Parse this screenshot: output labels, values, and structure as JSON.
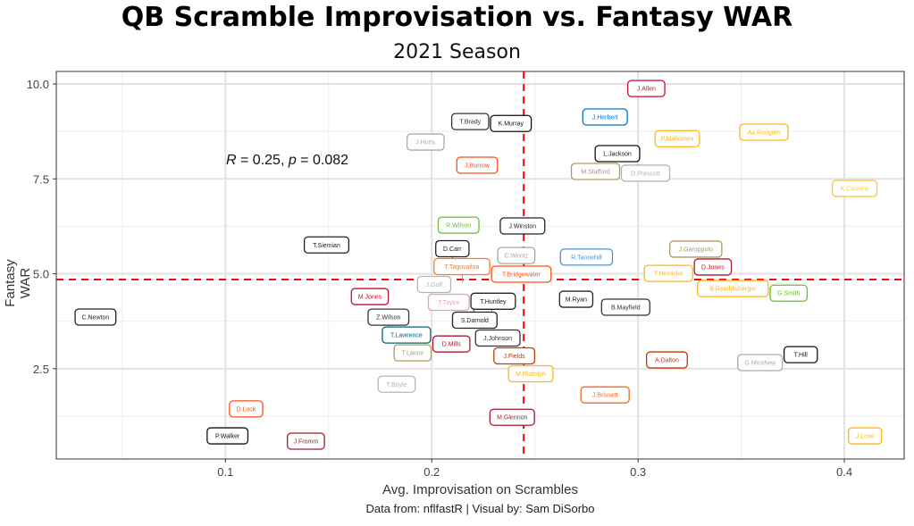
{
  "chart_data": {
    "type": "scatter",
    "title": "QB Scramble Improvisation vs. Fantasy WAR",
    "subtitle": "2021 Season",
    "xlabel": "Avg. Improvisation on Scrambles",
    "ylabel": "Fantasy WAR",
    "caption": "Data from: nflfastR | Visual by: Sam DiSorbo",
    "annotation": {
      "r_label": "R",
      "r_value": "= 0.25, ",
      "p_label": "p",
      "p_value": "= 0.082"
    },
    "xlim": [
      0.018,
      0.429
    ],
    "ylim": [
      0.12,
      10.33
    ],
    "x_ticks": [
      {
        "v": 0.1,
        "label": "0.1"
      },
      {
        "v": 0.2,
        "label": "0.2"
      },
      {
        "v": 0.3,
        "label": "0.3"
      },
      {
        "v": 0.4,
        "label": "0.4"
      }
    ],
    "y_ticks": [
      {
        "v": 2.5,
        "label": "2.5"
      },
      {
        "v": 5,
        "label": "5.0"
      },
      {
        "v": 7.5,
        "label": "7.5"
      },
      {
        "v": 10,
        "label": "10.0"
      }
    ],
    "grid": true,
    "reference_lines": {
      "x_mean": 0.2446,
      "y_mean": 4.85,
      "color": "#ff0000"
    },
    "points": [
      {
        "name": "J.Allen",
        "x": 0.304,
        "y": 9.88,
        "color": "#c60c30"
      },
      {
        "name": "J.Herbert",
        "x": 0.284,
        "y": 9.13,
        "color": "#0073cf"
      },
      {
        "name": "T.Brady",
        "x": 0.22,
        "y": 9.01,
        "color": "#333333"
      },
      {
        "name": "K.Murray",
        "x": 0.237,
        "y": 8.96,
        "color": "#111111"
      },
      {
        "name": "P.Mahomes",
        "x": 0.319,
        "y": 8.56,
        "color": "#ffb612"
      },
      {
        "name": "Aa.Rodgers",
        "x": 0.361,
        "y": 8.73,
        "color": "#ffb612"
      },
      {
        "name": "J.Hurts",
        "x": 0.197,
        "y": 8.47,
        "color": "#a5acaf"
      },
      {
        "name": "J.Burrow",
        "x": 0.222,
        "y": 7.86,
        "color": "#fb4f14"
      },
      {
        "name": "M.Stafford",
        "x": 0.28,
        "y": 7.79,
        "color": "#b3995d"
      },
      {
        "name": "D.Prescott",
        "x": 0.303,
        "y": 7.65,
        "color": "#b0b7bc"
      },
      {
        "name": "L.Jackson",
        "x": 0.29,
        "y": 8.07,
        "color": "#111111"
      },
      {
        "name": "K.Cousins",
        "x": 0.405,
        "y": 7.25,
        "color": "#ffc62f"
      },
      {
        "name": "R.Wilson",
        "x": 0.213,
        "y": 6.28,
        "color": "#69be28"
      },
      {
        "name": "J.Winston",
        "x": 0.244,
        "y": 6.26,
        "color": "#222222"
      },
      {
        "name": "T.Siemian",
        "x": 0.149,
        "y": 5.76,
        "color": "#222222"
      },
      {
        "name": "C.Wentz",
        "x": 0.241,
        "y": 5.48,
        "color": "#a2aaad"
      },
      {
        "name": "D.Carr",
        "x": 0.21,
        "y": 5.32,
        "color": "#222222"
      },
      {
        "name": "R.Tannehill",
        "x": 0.275,
        "y": 5.44,
        "color": "#4b92db"
      },
      {
        "name": "J.Garoppolo",
        "x": 0.328,
        "y": 5.44,
        "color": "#b3995d"
      },
      {
        "name": "D.Jones",
        "x": 0.335,
        "y": 5.39,
        "color": "#a71930"
      },
      {
        "name": "T.Heinicke",
        "x": 0.316,
        "y": 5.01,
        "color": "#ffb612"
      },
      {
        "name": "T.Bridgewater",
        "x": 0.243,
        "y": 4.99,
        "color": "#fb4f14"
      },
      {
        "name": "J.Goff",
        "x": 0.202,
        "y": 4.52,
        "color": "#b0b7bc"
      },
      {
        "name": "T.Taylor",
        "x": 0.209,
        "y": 4.52,
        "color": "#e8a0b0"
      },
      {
        "name": "T.Tagovailoa",
        "x": 0.215,
        "y": 4.78,
        "color": "#fc7a2a"
      },
      {
        "name": "M.Jones",
        "x": 0.17,
        "y": 4.4,
        "color": "#c60c30"
      },
      {
        "name": "B.Roethlisberger",
        "x": 0.346,
        "y": 4.61,
        "color": "#ffb612"
      },
      {
        "name": "G.Smith",
        "x": 0.373,
        "y": 4.49,
        "color": "#69be28"
      },
      {
        "name": "M.Ryan",
        "x": 0.27,
        "y": 4.33,
        "color": "#222222"
      },
      {
        "name": "S.Darnold",
        "x": 0.22,
        "y": 4.19,
        "color": "#222222"
      },
      {
        "name": "T.Huntley",
        "x": 0.229,
        "y": 4.02,
        "color": "#222222"
      },
      {
        "name": "B.Mayfield",
        "x": 0.294,
        "y": 4.12,
        "color": "#333333"
      },
      {
        "name": "C.Newton",
        "x": 0.037,
        "y": 3.86,
        "color": "#222222"
      },
      {
        "name": "Z.Wilson",
        "x": 0.179,
        "y": 3.62,
        "color": "#333333"
      },
      {
        "name": "J.Johnson",
        "x": 0.232,
        "y": 3.51,
        "color": "#333333"
      },
      {
        "name": "T.Lawrence",
        "x": 0.188,
        "y": 3.39,
        "color": "#006778"
      },
      {
        "name": "T.Lance",
        "x": 0.191,
        "y": 3.15,
        "color": "#b3995d"
      },
      {
        "name": "D.Mills",
        "x": 0.209,
        "y": 3.15,
        "color": "#a71930"
      },
      {
        "name": "J.Fields",
        "x": 0.24,
        "y": 3.04,
        "color": "#c83803"
      },
      {
        "name": "T.Hill",
        "x": 0.377,
        "y": 2.87,
        "color": "#111111"
      },
      {
        "name": "A.Dalton",
        "x": 0.314,
        "y": 2.73,
        "color": "#c83803"
      },
      {
        "name": "G.Minshew",
        "x": 0.361,
        "y": 2.66,
        "color": "#a5acaf"
      },
      {
        "name": "M.Rudolph",
        "x": 0.248,
        "y": 2.49,
        "color": "#ffb612"
      },
      {
        "name": "T.Boyle",
        "x": 0.183,
        "y": 2.09,
        "color": "#b0b7bc"
      },
      {
        "name": "J.Brissett",
        "x": 0.284,
        "y": 1.81,
        "color": "#f26a24"
      },
      {
        "name": "D.Lock",
        "x": 0.11,
        "y": 1.44,
        "color": "#fb4f14"
      },
      {
        "name": "M.Glennon",
        "x": 0.239,
        "y": 1.22,
        "color": "#a71930"
      },
      {
        "name": "P.Walker",
        "x": 0.101,
        "y": 0.73,
        "color": "#111111"
      },
      {
        "name": "J.Fromm",
        "x": 0.139,
        "y": 0.59,
        "color": "#a71930"
      },
      {
        "name": "J.Love",
        "x": 0.41,
        "y": 0.73,
        "color": "#ffb612"
      }
    ]
  }
}
